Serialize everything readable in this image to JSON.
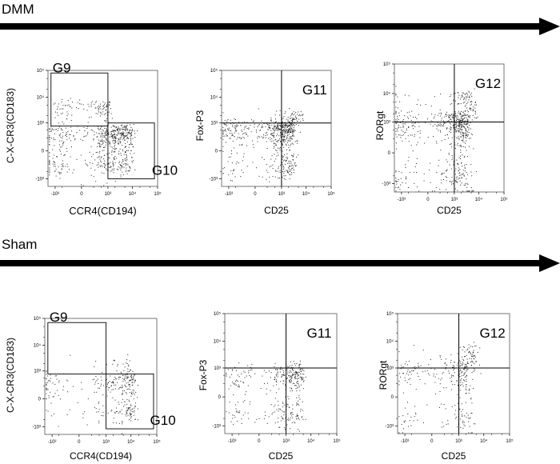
{
  "groups": [
    {
      "label": "DMM",
      "panels": [
        {
          "type": "scatter",
          "xlabel": "CCR4(CD194)",
          "ylabel": "C-X-CR3(CD183)",
          "gates": [
            {
              "name": "G9",
              "x": [
                -1500,
                1000
              ],
              "y": [
                750,
                80000
              ]
            },
            {
              "name": "G10",
              "x": [
                1000,
                75000
              ],
              "y": [
                -1000,
                1000
              ]
            }
          ],
          "clusters": [
            {
              "cx": 200,
              "cy": 3000,
              "sx": 600,
              "sy": 2500,
              "n": 140
            },
            {
              "cx": 600,
              "cy": 100,
              "sx": 1200,
              "sy": 300,
              "n": 320
            },
            {
              "cx": 4000,
              "cy": 200,
              "sx": 3500,
              "sy": 350,
              "n": 280
            }
          ]
        },
        {
          "type": "scatter",
          "xlabel": "CD25",
          "ylabel": "Fox-P3",
          "quadrant": {
            "name": "G11",
            "x": 1000,
            "y": 1000
          },
          "clusters": [
            {
              "cx": 800,
              "cy": 300,
              "sx": 1200,
              "sy": 500,
              "n": 600
            },
            {
              "cx": 3000,
              "cy": 1500,
              "sx": 2000,
              "sy": 900,
              "n": 80
            }
          ]
        },
        {
          "type": "scatter",
          "xlabel": "CD25",
          "ylabel": "RORgt",
          "quadrant": {
            "name": "G12",
            "x": 1000,
            "y": 1000
          },
          "clusters": [
            {
              "cx": 900,
              "cy": 600,
              "sx": 1400,
              "sy": 900,
              "n": 550
            },
            {
              "cx": 2500,
              "cy": 4000,
              "sx": 2500,
              "sy": 4000,
              "n": 150
            }
          ]
        }
      ]
    },
    {
      "label": "Sham",
      "panels": [
        {
          "type": "scatter",
          "xlabel": "CCR4(CD194)",
          "ylabel": "C-X-CR3(CD183)",
          "gates": [
            {
              "name": "G9",
              "x": [
                -1500,
                1000
              ],
              "y": [
                750,
                70000
              ]
            },
            {
              "name": "G10",
              "x": [
                1000,
                75000
              ],
              "y": [
                -1200,
                750
              ]
            }
          ],
          "clusters": [
            {
              "cx": 300,
              "cy": 100,
              "sx": 1000,
              "sy": 300,
              "n": 90
            },
            {
              "cx": 6000,
              "cy": 200,
              "sx": 5000,
              "sy": 400,
              "n": 220
            },
            {
              "cx": 4000,
              "cy": 2000,
              "sx": 3000,
              "sy": 1500,
              "n": 25
            }
          ]
        },
        {
          "type": "scatter",
          "xlabel": "CD25",
          "ylabel": "Fox-P3",
          "quadrant": {
            "name": "G11",
            "x": 1000,
            "y": 1000
          },
          "clusters": [
            {
              "cx": 300,
              "cy": 200,
              "sx": 900,
              "sy": 500,
              "n": 200
            },
            {
              "cx": 2500,
              "cy": 300,
              "sx": 1500,
              "sy": 600,
              "n": 180
            }
          ]
        },
        {
          "type": "scatter",
          "xlabel": "CD25",
          "ylabel": "RORgt",
          "quadrant": {
            "name": "G12",
            "x": 1000,
            "y": 1000
          },
          "clusters": [
            {
              "cx": 600,
              "cy": 400,
              "sx": 1200,
              "sy": 700,
              "n": 250
            },
            {
              "cx": 2500,
              "cy": 2500,
              "sx": 1800,
              "sy": 2500,
              "n": 90
            }
          ]
        }
      ]
    }
  ],
  "axes": {
    "x_ticks": [
      "-10³",
      "0",
      "10³",
      "10⁴",
      "10⁵"
    ],
    "y_ticks": [
      "10⁵",
      "10⁴",
      "10³",
      "0",
      "-10³"
    ],
    "scale": "biexponential"
  },
  "chart_data": [
    {
      "type": "scatter",
      "group": "DMM",
      "xlabel": "CCR4(CD194)",
      "ylabel": "C-X-CR3(CD183)",
      "gates": [
        "G9",
        "G10"
      ]
    },
    {
      "type": "scatter",
      "group": "DMM",
      "xlabel": "CD25",
      "ylabel": "Fox-P3",
      "gates": [
        "G11"
      ]
    },
    {
      "type": "scatter",
      "group": "DMM",
      "xlabel": "CD25",
      "ylabel": "RORgt",
      "gates": [
        "G12"
      ]
    },
    {
      "type": "scatter",
      "group": "Sham",
      "xlabel": "CCR4(CD194)",
      "ylabel": "C-X-CR3(CD183)",
      "gates": [
        "G9",
        "G10"
      ]
    },
    {
      "type": "scatter",
      "group": "Sham",
      "xlabel": "CD25",
      "ylabel": "Fox-P3",
      "gates": [
        "G11"
      ]
    },
    {
      "type": "scatter",
      "group": "Sham",
      "xlabel": "CD25",
      "ylabel": "RORgt",
      "gates": [
        "G12"
      ]
    }
  ]
}
